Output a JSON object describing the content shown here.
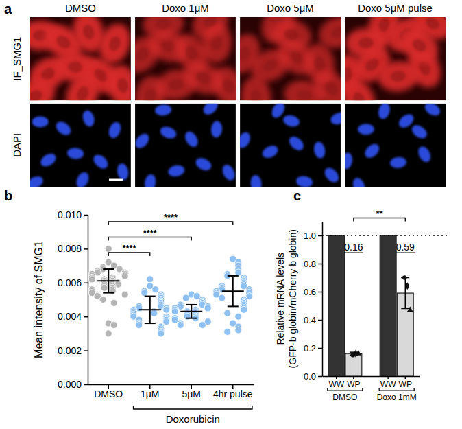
{
  "images": {
    "label": "a",
    "columns": [
      "DMSO",
      "Doxo 1μM",
      "Doxo 5μM",
      "Doxo 5μM pulse"
    ],
    "rows": [
      "IF_SMG1",
      "DAPI"
    ]
  },
  "chart_data": [
    {
      "type": "dot",
      "label": "b",
      "ylabel": "Mean intensity of SMG1",
      "categories": [
        "DMSO",
        "1μM",
        "5μM",
        "4hr pulse"
      ],
      "values": [
        [
          0.008,
          0.0072,
          0.007,
          0.0069,
          0.0068,
          0.0068,
          0.0067,
          0.0066,
          0.0066,
          0.0065,
          0.0065,
          0.0064,
          0.0064,
          0.0063,
          0.0063,
          0.0062,
          0.0062,
          0.0062,
          0.0061,
          0.0061,
          0.006,
          0.006,
          0.006,
          0.0059,
          0.0059,
          0.0058,
          0.0058,
          0.0057,
          0.0057,
          0.0056,
          0.0056,
          0.0055,
          0.0055,
          0.0054,
          0.0053,
          0.0052,
          0.005,
          0.0048,
          0.0036,
          0.0035,
          0.003
        ],
        [
          0.0062,
          0.0058,
          0.0056,
          0.0055,
          0.0054,
          0.0053,
          0.0052,
          0.0051,
          0.005,
          0.0049,
          0.0048,
          0.0047,
          0.0046,
          0.0046,
          0.0045,
          0.0045,
          0.0044,
          0.0044,
          0.0043,
          0.0043,
          0.0042,
          0.0042,
          0.0041,
          0.004,
          0.004,
          0.0039,
          0.0038,
          0.0038,
          0.0037,
          0.0036,
          0.0035,
          0.0034,
          0.0033,
          0.0032,
          0.0031,
          0.003
        ],
        [
          0.0053,
          0.0052,
          0.0051,
          0.005,
          0.0049,
          0.0048,
          0.0047,
          0.0047,
          0.0046,
          0.0046,
          0.0045,
          0.0045,
          0.0044,
          0.0044,
          0.0043,
          0.0043,
          0.0043,
          0.0042,
          0.0042,
          0.0041,
          0.0041,
          0.004,
          0.004,
          0.0039,
          0.0039,
          0.0038,
          0.0037,
          0.0036,
          0.0035,
          0.0035
        ],
        [
          0.0074,
          0.0072,
          0.007,
          0.0068,
          0.0066,
          0.0065,
          0.0064,
          0.0063,
          0.0062,
          0.0061,
          0.006,
          0.0059,
          0.0058,
          0.0058,
          0.0057,
          0.0056,
          0.0056,
          0.0055,
          0.0055,
          0.0054,
          0.0054,
          0.0053,
          0.0052,
          0.0051,
          0.005,
          0.0049,
          0.0048,
          0.0047,
          0.0046,
          0.0045,
          0.0044,
          0.0042,
          0.004,
          0.0036,
          0.0034,
          0.0032,
          0.0031
        ]
      ],
      "means": [
        0.0061,
        0.0044,
        0.0043,
        0.0055
      ],
      "errors": [
        0.0007,
        0.0008,
        0.0004,
        0.0009
      ],
      "colors": [
        "#b5b5b5",
        "#8ec0f2",
        "#8ec0f2",
        "#8ec0f2"
      ],
      "ylim": [
        0,
        0.01
      ],
      "yticks": [
        {
          "value": 0,
          "label": "0.000"
        },
        {
          "value": 0.002,
          "label": "0.002"
        },
        {
          "value": 0.004,
          "label": "0.004"
        },
        {
          "value": 0.006,
          "label": "0.006"
        },
        {
          "value": 0.008,
          "label": "0.008"
        },
        {
          "value": 0.01,
          "label": "0.010"
        }
      ],
      "annotations": [
        {
          "from": 0,
          "to": 3,
          "text": "****"
        },
        {
          "from": 0,
          "to": 2,
          "text": "****"
        },
        {
          "from": 0,
          "to": 1,
          "text": "****"
        }
      ],
      "group_label": {
        "text": "Doxorubicin",
        "from": 1,
        "to": 3
      }
    },
    {
      "type": "bar",
      "label": "c",
      "ylabel": [
        "Relative mRNA levels",
        "(GFP-b globin/mCherry b globin)"
      ],
      "categories": [
        "WW",
        "WP",
        "WW",
        "WP"
      ],
      "values": [
        1.0,
        0.16,
        1.0,
        0.59
      ],
      "errors": [
        null,
        0.01,
        null,
        0.11
      ],
      "points": [
        null,
        [
          0.15,
          0.16,
          0.16
        ],
        null,
        [
          0.7,
          0.64,
          0.47
        ]
      ],
      "colors": [
        "#333333",
        "#d9d9d9",
        "#333333",
        "#d9d9d9"
      ],
      "data_labels": true,
      "value_labels": [
        null,
        "0.16",
        null,
        "0.59"
      ],
      "reference_line": 1,
      "ylim": [
        0,
        1.1
      ],
      "yticks": [
        {
          "value": 0,
          "label": "0.0"
        },
        {
          "value": 0.2,
          "label": "0.2"
        },
        {
          "value": 0.4,
          "label": "0.4"
        },
        {
          "value": 0.6,
          "label": "0.6"
        },
        {
          "value": 0.8,
          "label": "0.8"
        },
        {
          "value": 1,
          "label": "1.0"
        }
      ],
      "annotations": [
        {
          "from": 1,
          "to": 3,
          "text": "**"
        }
      ],
      "groups": [
        {
          "text": "DMSO",
          "from": 0,
          "to": 1
        },
        {
          "text": "Doxo 1mM",
          "from": 2,
          "to": 3
        }
      ]
    }
  ]
}
